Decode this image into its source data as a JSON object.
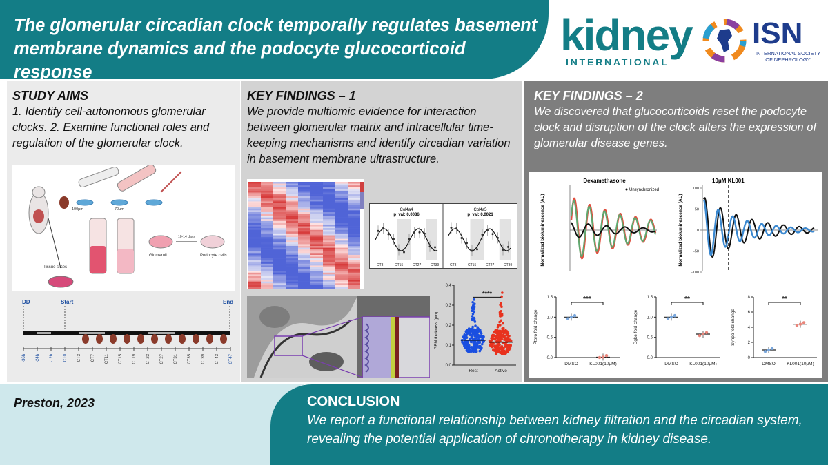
{
  "header": {
    "title": "The glomerular circadian clock temporally regulates basement membrane dynamics and the podocyte glucocorticoid response",
    "journal_word": "kidney",
    "journal_sub": "INTERNATIONAL",
    "isn_word": "ISN",
    "isn_sub": "INTERNATIONAL SOCIETY OF NEPHROLOGY"
  },
  "aims": {
    "title": "STUDY AIMS",
    "text": "1. Identify cell-autonomous glomerular clocks. 2. Examine functional roles and regulation of the glomerular clock.",
    "schematic": {
      "mesh_labels": [
        "100μm",
        "70μm"
      ],
      "labels": [
        "Tissue slices",
        "Glomeruli",
        "10-14 days",
        "Podocyte cells"
      ]
    },
    "timeline": {
      "dd": "DD",
      "start": "Start",
      "end": "End",
      "ticks": [
        "-36h",
        "-24h",
        "-12h",
        "CT0",
        "CT3",
        "CT7",
        "CT11",
        "CT15",
        "CT19",
        "CT23",
        "CT27",
        "CT31",
        "CT35",
        "CT39",
        "CT43",
        "CT47"
      ]
    }
  },
  "kf1": {
    "title": "KEY FINDINGS –  1",
    "text": "We provide multiomic evidence for interaction between glomerular matrix and intracellular time-keeping mechanisms and identify circadian variation in basement membrane ultrastructure.",
    "col_plots": [
      {
        "gene": "Col4a4",
        "pval": "p_val: 0.0086",
        "xticks": [
          "CT3",
          "CT15",
          "CT27",
          "CT39"
        ]
      },
      {
        "gene": "Col4a5",
        "pval": "p_val: 0.0021",
        "xticks": [
          "CT3",
          "CT15",
          "CT27",
          "CT39"
        ]
      }
    ],
    "gbm_chart": {
      "ylabel": "GBM thickness (μm)",
      "yticks": [
        "0.0",
        "0.1",
        "0.2",
        "0.3",
        "0.4"
      ],
      "ylim": [
        0,
        0.4
      ],
      "categories": [
        "Rest",
        "Active"
      ],
      "colors": [
        "#1a4fe0",
        "#e8321e"
      ],
      "median": [
        0.125,
        0.115
      ],
      "significance": "****"
    }
  },
  "kf2": {
    "title": "KEY FINDINGS – 2",
    "text": "We discovered that glucocorticoids reset the podocyte clock and disruption of the clock alters the expression of glomerular disease genes.",
    "dex_plot": {
      "title": "Dexamethasone",
      "legend": "Unsynchronized",
      "ylabel": "Normalized bioluminescence (AU)"
    },
    "kl_plot": {
      "title": "10μM KL001",
      "ylabel": "Normalized bioluminescence (AU)",
      "yticks": [
        "100",
        "50",
        "0",
        "-50",
        "-100"
      ]
    },
    "bar_plots": [
      {
        "ylabel": "Ptpro fold change",
        "yticks": [
          "1.5",
          "1.0",
          "0.5",
          "0.0"
        ],
        "ylim": [
          0,
          1.5
        ],
        "categories": [
          "DMSO",
          "KL001(10μM)"
        ],
        "values": [
          1.0,
          0.01
        ],
        "sig": "***"
      },
      {
        "ylabel": "Dgke fold change",
        "yticks": [
          "1.5",
          "1.0",
          "0.5",
          "0.0"
        ],
        "ylim": [
          0,
          1.5
        ],
        "categories": [
          "DMSO",
          "KL001(10μM)"
        ],
        "values": [
          1.0,
          0.58
        ],
        "sig": "**"
      },
      {
        "ylabel": "Synpo fold change",
        "yticks": [
          "8",
          "6",
          "4",
          "2",
          "0"
        ],
        "ylim": [
          0,
          8
        ],
        "categories": [
          "DMSO",
          "KL001(10μM)"
        ],
        "values": [
          1.0,
          4.4
        ],
        "sig": "**"
      }
    ]
  },
  "footer": {
    "author": "Preston, 2023",
    "conclusion_title": "CONCLUSION",
    "conclusion_text": "We report a functional relationship between kidney filtration and the circadian system, revealing the potential application of chronotherapy in kidney disease."
  },
  "colors": {
    "teal": "#137d86",
    "isn_blue": "#1e3c8c",
    "light_panel": "#ebebeb",
    "mid_panel": "#d3d3d3",
    "dark_panel": "#7e7e7e",
    "footer_light": "#cfe8ec"
  }
}
